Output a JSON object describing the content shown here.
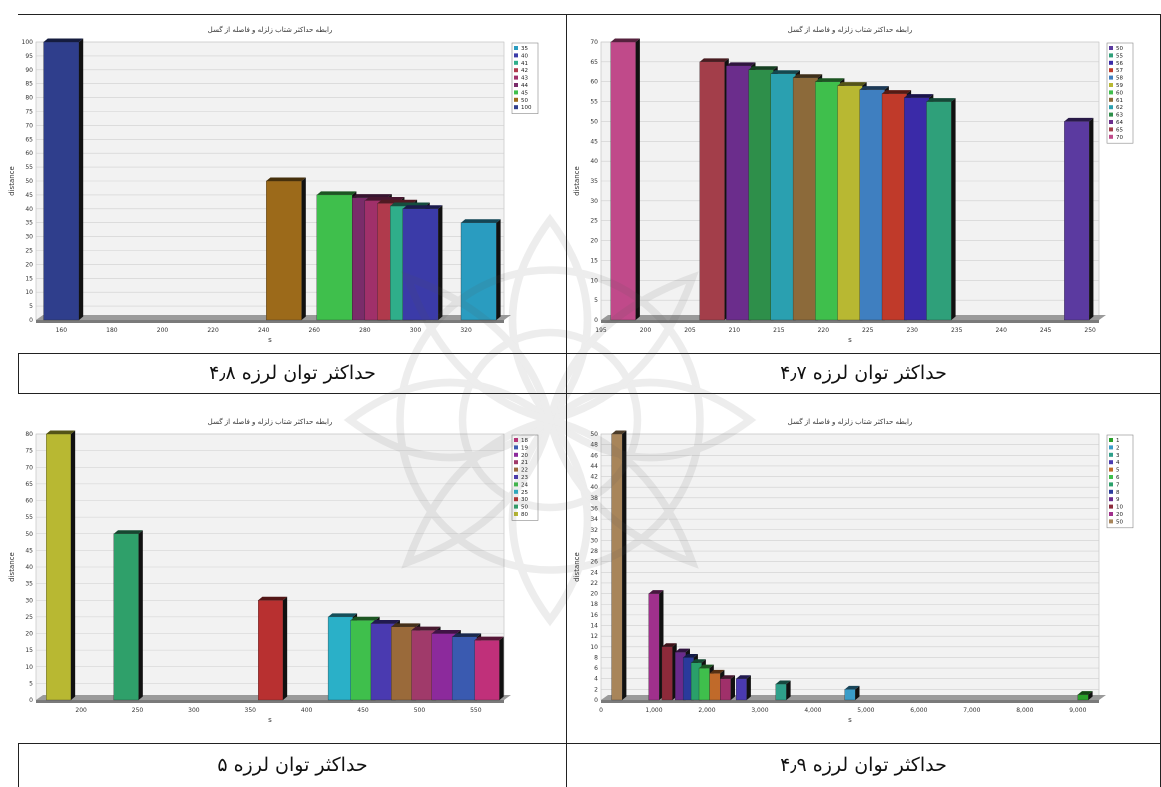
{
  "captions": {
    "top_left": "حداکثر توان لرزه ۴٫۸",
    "top_right": "حداکثر توان لرزه ۴٫۷",
    "bottom_left": "حداکثر توان لرزه ۵",
    "bottom_right": "حداکثر توان لرزه ۴٫۹"
  },
  "chart_data": [
    {
      "type": "bar",
      "title": "رابطه حداکثر شتاب زلزله و فاصله از گسل",
      "xlabel": "s",
      "ylabel": "distance",
      "ylim": [
        0,
        100
      ],
      "yticks": [
        0,
        5,
        10,
        15,
        20,
        25,
        30,
        35,
        40,
        45,
        50,
        55,
        60,
        65,
        70,
        75,
        80,
        85,
        90,
        95,
        100
      ],
      "xlim": [
        150,
        335
      ],
      "xticks": [
        160,
        180,
        200,
        220,
        240,
        260,
        280,
        300,
        320
      ],
      "bar_width": 14,
      "points": [
        {
          "x": 160,
          "y": 100,
          "color": "#2f3e8c"
        },
        {
          "x": 248,
          "y": 50,
          "color": "#9c6a1a"
        },
        {
          "x": 268,
          "y": 45,
          "color": "#3fbf4c"
        },
        {
          "x": 282,
          "y": 44,
          "color": "#7a2c6a"
        },
        {
          "x": 287,
          "y": 43,
          "color": "#a0306a"
        },
        {
          "x": 292,
          "y": 42,
          "color": "#b03a4c"
        },
        {
          "x": 297,
          "y": 41,
          "color": "#2fae8a"
        },
        {
          "x": 302,
          "y": 40,
          "color": "#3b3ba8"
        },
        {
          "x": 325,
          "y": 35,
          "color": "#2a9cc0"
        }
      ],
      "legend": [
        {
          "label": "35",
          "color": "#2a9cc0"
        },
        {
          "label": "40",
          "color": "#3b3ba8"
        },
        {
          "label": "41",
          "color": "#2fae8a"
        },
        {
          "label": "42",
          "color": "#b03a4c"
        },
        {
          "label": "43",
          "color": "#a0306a"
        },
        {
          "label": "44",
          "color": "#7a2c6a"
        },
        {
          "label": "45",
          "color": "#3fbf4c"
        },
        {
          "label": "50",
          "color": "#9c6a1a"
        },
        {
          "label": "100",
          "color": "#2f3e8c"
        }
      ]
    },
    {
      "type": "bar",
      "title": "رابطه حداکثر شتاب زلزله و فاصله از گسل",
      "xlabel": "s",
      "ylabel": "distance",
      "ylim": [
        0,
        70
      ],
      "yticks": [
        0,
        5,
        10,
        15,
        20,
        25,
        30,
        35,
        40,
        45,
        50,
        55,
        60,
        65,
        70
      ],
      "xlim": [
        195,
        251
      ],
      "xticks": [
        195,
        200,
        205,
        210,
        215,
        220,
        225,
        230,
        235,
        240,
        245,
        250
      ],
      "bar_width": 2.8,
      "points": [
        {
          "x": 197.5,
          "y": 70,
          "color": "#c04a8a"
        },
        {
          "x": 207.5,
          "y": 65,
          "color": "#a33e4a"
        },
        {
          "x": 210.5,
          "y": 64,
          "color": "#6b2d8c"
        },
        {
          "x": 213,
          "y": 63,
          "color": "#2e8f4a"
        },
        {
          "x": 215.5,
          "y": 62,
          "color": "#2aa0b0"
        },
        {
          "x": 218,
          "y": 61,
          "color": "#8c6a3a"
        },
        {
          "x": 220.5,
          "y": 60,
          "color": "#3fbf4c"
        },
        {
          "x": 223,
          "y": 59,
          "color": "#b8b832"
        },
        {
          "x": 225.5,
          "y": 58,
          "color": "#3f7fc0"
        },
        {
          "x": 228,
          "y": 57,
          "color": "#c03a2a"
        },
        {
          "x": 230.5,
          "y": 56,
          "color": "#3a2aa8"
        },
        {
          "x": 233,
          "y": 55,
          "color": "#2fa07a"
        },
        {
          "x": 248.5,
          "y": 50,
          "color": "#5b3aa0"
        }
      ],
      "legend": [
        {
          "label": "50",
          "color": "#5b3aa0"
        },
        {
          "label": "55",
          "color": "#2fa07a"
        },
        {
          "label": "56",
          "color": "#3a2aa8"
        },
        {
          "label": "57",
          "color": "#c03a2a"
        },
        {
          "label": "58",
          "color": "#3f7fc0"
        },
        {
          "label": "59",
          "color": "#b8b832"
        },
        {
          "label": "60",
          "color": "#3fbf4c"
        },
        {
          "label": "61",
          "color": "#8c6a3a"
        },
        {
          "label": "62",
          "color": "#2aa0b0"
        },
        {
          "label": "63",
          "color": "#2e8f4a"
        },
        {
          "label": "64",
          "color": "#6b2d8c"
        },
        {
          "label": "65",
          "color": "#a33e4a"
        },
        {
          "label": "70",
          "color": "#c04a8a"
        }
      ]
    },
    {
      "type": "bar",
      "title": "رابطه حداکثر شتاب زلزله و فاصله از گسل",
      "xlabel": "s",
      "ylabel": "distance",
      "ylim": [
        0,
        80
      ],
      "yticks": [
        0,
        5,
        10,
        15,
        20,
        25,
        30,
        35,
        40,
        45,
        50,
        55,
        60,
        65,
        70,
        75,
        80
      ],
      "xlim": [
        160,
        575
      ],
      "xticks": [
        200,
        250,
        300,
        350,
        400,
        450,
        500,
        550
      ],
      "bar_width": 22,
      "points": [
        {
          "x": 180,
          "y": 80,
          "color": "#b8b832"
        },
        {
          "x": 240,
          "y": 50,
          "color": "#2fa06a"
        },
        {
          "x": 368,
          "y": 30,
          "color": "#b83030"
        },
        {
          "x": 430,
          "y": 25,
          "color": "#2ab0c8"
        },
        {
          "x": 450,
          "y": 24,
          "color": "#3fbf4c"
        },
        {
          "x": 468,
          "y": 23,
          "color": "#4a3ab0"
        },
        {
          "x": 486,
          "y": 22,
          "color": "#9a6a3a"
        },
        {
          "x": 504,
          "y": 21,
          "color": "#a03a6a"
        },
        {
          "x": 522,
          "y": 20,
          "color": "#8c2a9c"
        },
        {
          "x": 540,
          "y": 19,
          "color": "#3a5ab0"
        },
        {
          "x": 560,
          "y": 18,
          "color": "#c0307a"
        }
      ],
      "legend": [
        {
          "label": "18",
          "color": "#c0307a"
        },
        {
          "label": "19",
          "color": "#3a5ab0"
        },
        {
          "label": "20",
          "color": "#8c2a9c"
        },
        {
          "label": "21",
          "color": "#a03a6a"
        },
        {
          "label": "22",
          "color": "#9a6a3a"
        },
        {
          "label": "23",
          "color": "#4a3ab0"
        },
        {
          "label": "24",
          "color": "#3fbf4c"
        },
        {
          "label": "25",
          "color": "#2ab0c8"
        },
        {
          "label": "30",
          "color": "#b83030"
        },
        {
          "label": "50",
          "color": "#2fa06a"
        },
        {
          "label": "80",
          "color": "#b8b832"
        }
      ]
    },
    {
      "type": "bar",
      "title": "رابطه حداکثر شتاب زلزله و فاصله از گسل",
      "xlabel": "s",
      "ylabel": "distance",
      "ylim": [
        0,
        50
      ],
      "yticks": [
        0,
        2,
        4,
        6,
        8,
        10,
        12,
        14,
        16,
        18,
        20,
        22,
        24,
        26,
        28,
        30,
        32,
        34,
        36,
        38,
        40,
        42,
        44,
        46,
        48,
        50
      ],
      "xlim": [
        0,
        9400
      ],
      "xticks": [
        0,
        1000,
        2000,
        3000,
        4000,
        5000,
        6000,
        7000,
        8000,
        9000
      ],
      "xtick_labels": [
        "0",
        "1,000",
        "2,000",
        "3,000",
        "4,000",
        "5,000",
        "6,000",
        "7,000",
        "8,000",
        "9,000"
      ],
      "bar_width": 200,
      "points": [
        {
          "x": 300,
          "y": 50,
          "color": "#a8855a"
        },
        {
          "x": 1000,
          "y": 20,
          "color": "#a0308c"
        },
        {
          "x": 1250,
          "y": 10,
          "color": "#8c2a3a"
        },
        {
          "x": 1500,
          "y": 9,
          "color": "#6a2a8c"
        },
        {
          "x": 1650,
          "y": 8,
          "color": "#2a3a9c"
        },
        {
          "x": 1800,
          "y": 7,
          "color": "#2aa06a"
        },
        {
          "x": 1950,
          "y": 6,
          "color": "#3fbf4c"
        },
        {
          "x": 2150,
          "y": 5,
          "color": "#c06a2a"
        },
        {
          "x": 2350,
          "y": 4,
          "color": "#a0306a"
        },
        {
          "x": 2650,
          "y": 4,
          "color": "#4a3ab0"
        },
        {
          "x": 3400,
          "y": 3,
          "color": "#2fa08a"
        },
        {
          "x": 4700,
          "y": 2,
          "color": "#3a9cc8"
        },
        {
          "x": 9100,
          "y": 1,
          "color": "#2aa02a"
        }
      ],
      "legend": [
        {
          "label": "1",
          "color": "#2aa02a"
        },
        {
          "label": "2",
          "color": "#3a9cc8"
        },
        {
          "label": "3",
          "color": "#2fa08a"
        },
        {
          "label": "4",
          "color": "#4a3ab0"
        },
        {
          "label": "5",
          "color": "#c06a2a"
        },
        {
          "label": "6",
          "color": "#3fbf4c"
        },
        {
          "label": "7",
          "color": "#2aa06a"
        },
        {
          "label": "8",
          "color": "#2a3a9c"
        },
        {
          "label": "9",
          "color": "#6a2a8c"
        },
        {
          "label": "10",
          "color": "#8c2a3a"
        },
        {
          "label": "20",
          "color": "#a0308c"
        },
        {
          "label": "50",
          "color": "#a8855a"
        }
      ]
    }
  ]
}
